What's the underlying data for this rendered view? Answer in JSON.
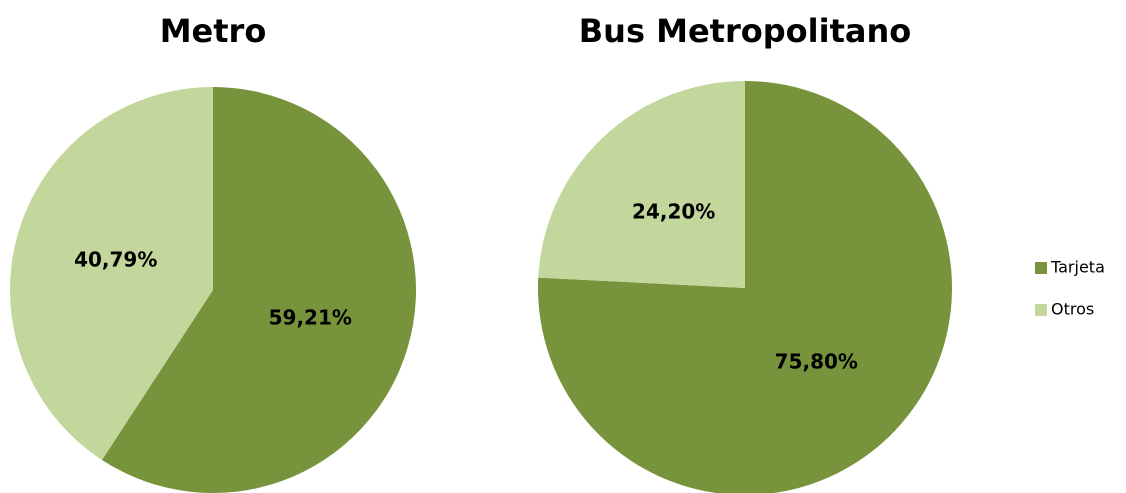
{
  "chart_data": [
    {
      "type": "pie",
      "title": "Metro",
      "categories": [
        "Tarjeta",
        "Otros"
      ],
      "values": [
        59.21,
        40.79
      ],
      "value_labels": [
        "59,21%",
        "40,79%"
      ],
      "colors": [
        "#77933c",
        "#c3d69b"
      ],
      "legend": "right"
    },
    {
      "type": "pie",
      "title": "Bus Metropolitano",
      "categories": [
        "Tarjeta",
        "Otros"
      ],
      "values": [
        75.8,
        24.2
      ],
      "value_labels": [
        "75,80%",
        "24,20%"
      ],
      "colors": [
        "#77933c",
        "#c3d69b"
      ],
      "legend": "right"
    }
  ]
}
